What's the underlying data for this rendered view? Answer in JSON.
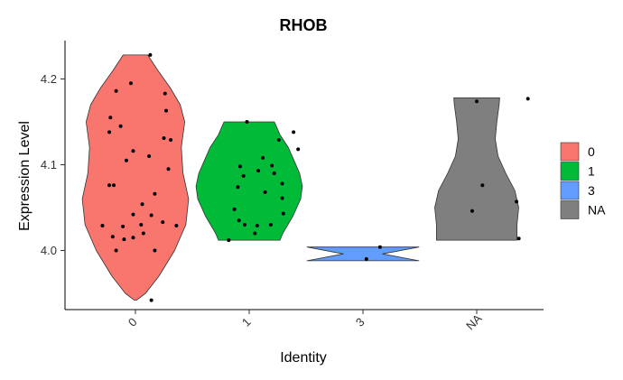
{
  "chart_data": {
    "type": "violin",
    "title": "RHOB",
    "xlabel": "Identity",
    "ylabel": "Expression Level",
    "categories": [
      "0",
      "1",
      "3",
      "NA"
    ],
    "yticks": [
      "4.0",
      "4.1",
      "4.2"
    ],
    "ylim": [
      3.93,
      4.245
    ],
    "grid": false,
    "legend_position": "right",
    "legend": [
      {
        "label": "0",
        "color": "#F8766D"
      },
      {
        "label": "1",
        "color": "#00BA38"
      },
      {
        "label": "3",
        "color": "#619CFF"
      },
      {
        "label": "NA",
        "color": "#7F7F7F"
      }
    ],
    "series": [
      {
        "category": "0",
        "color": "#F8766D",
        "range": [
          3.942,
          4.228
        ],
        "profile": [
          [
            3.942,
            0.02
          ],
          [
            3.95,
            0.18
          ],
          [
            3.97,
            0.42
          ],
          [
            4.0,
            0.7
          ],
          [
            4.03,
            0.9
          ],
          [
            4.06,
            0.95
          ],
          [
            4.09,
            0.85
          ],
          [
            4.12,
            0.82
          ],
          [
            4.15,
            0.88
          ],
          [
            4.17,
            0.8
          ],
          [
            4.19,
            0.62
          ],
          [
            4.21,
            0.4
          ],
          [
            4.228,
            0.22
          ]
        ],
        "points": [
          [
            0.13,
            4.228
          ],
          [
            -0.17,
            4.186
          ],
          [
            -0.04,
            4.195
          ],
          [
            0.26,
            4.183
          ],
          [
            -0.22,
            4.155
          ],
          [
            0.27,
            4.163
          ],
          [
            -0.13,
            4.145
          ],
          [
            -0.23,
            4.138
          ],
          [
            0.25,
            4.131
          ],
          [
            0.31,
            4.129
          ],
          [
            -0.02,
            4.116
          ],
          [
            0.12,
            4.11
          ],
          [
            -0.08,
            4.105
          ],
          [
            0.29,
            4.095
          ],
          [
            -0.23,
            4.076
          ],
          [
            -0.19,
            4.076
          ],
          [
            0.17,
            4.066
          ],
          [
            0.06,
            4.054
          ],
          [
            -0.02,
            4.042
          ],
          [
            0.14,
            4.041
          ],
          [
            0.05,
            4.03
          ],
          [
            -0.11,
            4.028
          ],
          [
            -0.29,
            4.029
          ],
          [
            0.24,
            4.033
          ],
          [
            0.36,
            4.029
          ],
          [
            -0.2,
            4.016
          ],
          [
            -0.1,
            4.013
          ],
          [
            0.07,
            4.02
          ],
          [
            -0.02,
            4.015
          ],
          [
            -0.17,
            4.0
          ],
          [
            0.17,
            4.0
          ],
          [
            0.14,
            3.942
          ]
        ]
      },
      {
        "category": "1",
        "color": "#00BA38",
        "range": [
          4.012,
          4.15
        ],
        "profile": [
          [
            4.012,
            0.55
          ],
          [
            4.02,
            0.6
          ],
          [
            4.04,
            0.78
          ],
          [
            4.06,
            0.92
          ],
          [
            4.075,
            0.95
          ],
          [
            4.09,
            0.9
          ],
          [
            4.105,
            0.8
          ],
          [
            4.12,
            0.7
          ],
          [
            4.135,
            0.55
          ],
          [
            4.15,
            0.45
          ]
        ],
        "points": [
          [
            -0.02,
            4.15
          ],
          [
            0.39,
            4.138
          ],
          [
            0.26,
            4.129
          ],
          [
            0.43,
            4.118
          ],
          [
            0.12,
            4.108
          ],
          [
            0.2,
            4.099
          ],
          [
            -0.08,
            4.098
          ],
          [
            0.22,
            4.09
          ],
          [
            -0.05,
            4.087
          ],
          [
            0.08,
            4.093
          ],
          [
            0.29,
            4.078
          ],
          [
            -0.1,
            4.074
          ],
          [
            0.14,
            4.068
          ],
          [
            0.29,
            4.061
          ],
          [
            -0.13,
            4.048
          ],
          [
            0.3,
            4.043
          ],
          [
            -0.09,
            4.035
          ],
          [
            -0.04,
            4.03
          ],
          [
            0.07,
            4.029
          ],
          [
            0.19,
            4.03
          ],
          [
            0.05,
            4.02
          ],
          [
            -0.18,
            4.012
          ]
        ]
      },
      {
        "category": "3",
        "color": "#619CFF",
        "range": [
          3.988,
          4.004
        ],
        "profile": [
          [
            3.988,
            1.0
          ],
          [
            3.996,
            0.35
          ],
          [
            4.004,
            1.0
          ]
        ],
        "points": [
          [
            0.15,
            4.004
          ],
          [
            0.03,
            3.99
          ]
        ]
      },
      {
        "category": "NA",
        "color": "#7F7F7F",
        "range": [
          4.012,
          4.178
        ],
        "profile": [
          [
            4.012,
            0.72
          ],
          [
            4.03,
            0.72
          ],
          [
            4.05,
            0.75
          ],
          [
            4.07,
            0.68
          ],
          [
            4.09,
            0.52
          ],
          [
            4.11,
            0.38
          ],
          [
            4.13,
            0.33
          ],
          [
            4.15,
            0.36
          ],
          [
            4.17,
            0.4
          ],
          [
            4.178,
            0.41
          ]
        ],
        "points": [
          [
            0.0,
            4.174
          ],
          [
            0.45,
            4.177
          ],
          [
            0.05,
            4.076
          ],
          [
            0.35,
            4.057
          ],
          [
            -0.04,
            4.046
          ],
          [
            0.37,
            4.014
          ]
        ]
      }
    ]
  }
}
